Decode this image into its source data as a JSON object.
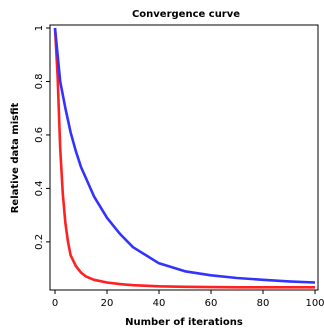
{
  "chart_data": {
    "type": "line",
    "title": "Convergence curve",
    "xlabel": "Number of iterations",
    "ylabel": "Relative data misfit",
    "xlim": [
      0,
      100
    ],
    "ylim": [
      0.02,
      1.0
    ],
    "xticks": [
      0,
      20,
      40,
      60,
      80,
      100
    ],
    "yticks": [
      0.2,
      0.4,
      0.6,
      0.8,
      1
    ],
    "grid": false,
    "series": [
      {
        "color": "#ff2020",
        "x": [
          0,
          1,
          2,
          3,
          4,
          5,
          6,
          8,
          10,
          12,
          15,
          20,
          25,
          30,
          40,
          50,
          60,
          70,
          80,
          90,
          100
        ],
        "y": [
          1.0,
          0.82,
          0.55,
          0.38,
          0.27,
          0.2,
          0.15,
          0.11,
          0.085,
          0.07,
          0.058,
          0.048,
          0.042,
          0.038,
          0.034,
          0.032,
          0.031,
          0.03,
          0.03,
          0.03,
          0.03
        ]
      },
      {
        "color": "#3333ff",
        "x": [
          0,
          2,
          4,
          6,
          8,
          10,
          15,
          20,
          25,
          30,
          40,
          50,
          60,
          70,
          80,
          90,
          100
        ],
        "y": [
          1.0,
          0.8,
          0.7,
          0.61,
          0.54,
          0.48,
          0.37,
          0.29,
          0.23,
          0.18,
          0.12,
          0.09,
          0.075,
          0.065,
          0.058,
          0.052,
          0.048
        ]
      }
    ]
  }
}
